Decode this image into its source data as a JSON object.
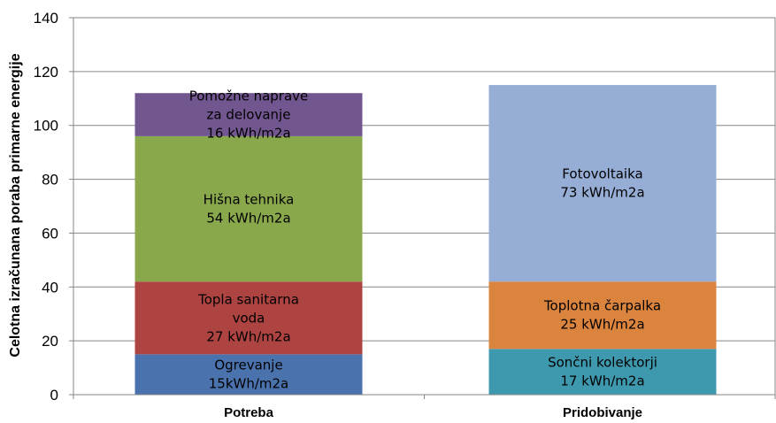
{
  "chart_data": {
    "type": "bar",
    "stacked": true,
    "title": "",
    "xlabel": "",
    "ylabel": "Celotna izračunana poraba primarne energije",
    "ylim": [
      0,
      140
    ],
    "yticks": [
      0,
      20,
      40,
      60,
      80,
      100,
      120,
      140
    ],
    "grid": true,
    "legend": "none",
    "categories": [
      "Potreba",
      "Pridobivanje"
    ],
    "bars": [
      {
        "category": "Potreba",
        "segments": [
          {
            "value": 15,
            "color": "#4a72ad",
            "label": [
              "Ogrevanje",
              "15kWh/m2a"
            ]
          },
          {
            "value": 27,
            "color": "#ad4442",
            "label": [
              "Topla sanitarna",
              "voda",
              "27 kWh/m2a"
            ]
          },
          {
            "value": 54,
            "color": "#89a84c",
            "label": [
              "Hišna tehnika",
              "54 kWh/m2a"
            ]
          },
          {
            "value": 16,
            "color": "#725690",
            "label": [
              "Pomožne naprave",
              "za delovanje",
              "16 kWh/m2a"
            ]
          }
        ]
      },
      {
        "category": "Pridobivanje",
        "segments": [
          {
            "value": 17,
            "color": "#3f99ae",
            "label": [
              "Sončni kolektorji",
              "17 kWh/m2a"
            ]
          },
          {
            "value": 25,
            "color": "#db843e",
            "label": [
              "Toplotna čarpalka",
              "25 kWh/m2a"
            ]
          },
          {
            "value": 73,
            "color": "#96aed5",
            "label": [
              "Fotovoltaika",
              "73 kWh/m2a"
            ]
          }
        ]
      }
    ]
  }
}
